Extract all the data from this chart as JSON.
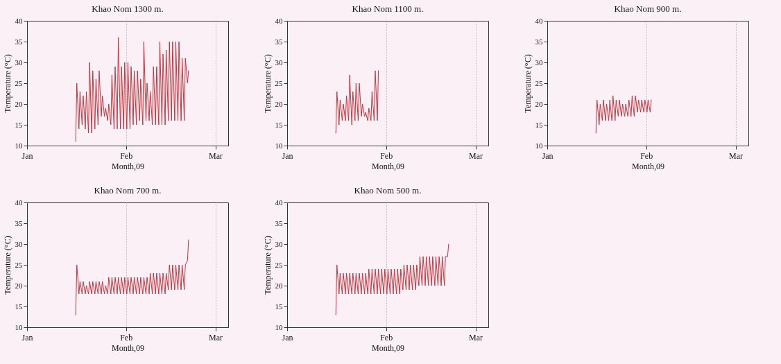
{
  "chart_data": [
    {
      "type": "line",
      "title": "Khao Nom 1300 m.",
      "xlabel": "Month,09",
      "ylabel": "Temperature (°C)",
      "xlim": [
        "--01-01",
        "--03-05"
      ],
      "xticks": [
        {
          "value": "--01-01",
          "label": "Jan"
        },
        {
          "value": "--02-01",
          "label": "Feb"
        },
        {
          "value": "--03-01",
          "label": "Mar"
        }
      ],
      "ylim": [
        10,
        40
      ],
      "yticks": [
        10,
        15,
        20,
        25,
        30,
        35,
        40
      ],
      "grid": "x",
      "x": [
        "--01-16T06:00",
        "--01-16T14:00",
        "--01-17T06:00",
        "--01-17T14:00",
        "--01-18T06:00",
        "--01-18T14:00",
        "--01-19T06:00",
        "--01-19T14:00",
        "--01-20T06:00",
        "--01-20T14:00",
        "--01-21T06:00",
        "--01-21T14:00",
        "--01-22T06:00",
        "--01-22T14:00",
        "--01-23T06:00",
        "--01-23T14:00",
        "--01-24T06:00",
        "--01-24T14:00",
        "--01-25T06:00",
        "--01-25T14:00",
        "--01-26T06:00",
        "--01-26T14:00",
        "--01-27T06:00",
        "--01-27T14:00",
        "--01-28T06:00",
        "--01-28T14:00",
        "--01-29T06:00",
        "--01-29T14:00",
        "--01-30T06:00",
        "--01-30T14:00",
        "--01-31T06:00",
        "--01-31T14:00",
        "--02-01T06:00",
        "--02-01T14:00",
        "--02-02T06:00",
        "--02-02T14:00",
        "--02-03T06:00",
        "--02-03T14:00",
        "--02-04T06:00",
        "--02-04T14:00",
        "--02-05T06:00",
        "--02-05T14:00",
        "--02-06T06:00",
        "--02-06T14:00",
        "--02-07T06:00",
        "--02-07T14:00",
        "--02-08T06:00",
        "--02-08T14:00",
        "--02-09T06:00",
        "--02-09T14:00",
        "--02-10T06:00",
        "--02-10T14:00",
        "--02-11T06:00",
        "--02-11T14:00",
        "--02-12T06:00",
        "--02-12T14:00",
        "--02-13T06:00",
        "--02-13T14:00",
        "--02-14T06:00",
        "--02-14T14:00",
        "--02-15T06:00",
        "--02-15T14:00",
        "--02-16T06:00",
        "--02-16T14:00",
        "--02-17T06:00",
        "--02-17T14:00",
        "--02-18T06:00",
        "--02-18T14:00",
        "--02-19T06:00",
        "--02-19T14:00",
        "--02-20T06:00",
        "--02-20T14:00"
      ],
      "series": [
        {
          "color": "#c8323c",
          "values": [
            11,
            25,
            14,
            23,
            15,
            22,
            14,
            23,
            13,
            30,
            13,
            28,
            14,
            26,
            15,
            28,
            17,
            22,
            17,
            19,
            16,
            20,
            15,
            27,
            14,
            29,
            14,
            36,
            14,
            29,
            14,
            30,
            14,
            30,
            14,
            29,
            15,
            28,
            15,
            28,
            16,
            26,
            15,
            35,
            16,
            25,
            16,
            23,
            15,
            29,
            15,
            29,
            15,
            35,
            15,
            32,
            15,
            33,
            16,
            35,
            16,
            35,
            16,
            35,
            16,
            35,
            16,
            31,
            16,
            31,
            25,
            28
          ]
        }
      ]
    },
    {
      "type": "line",
      "title": "Khao Nom 1100 m.",
      "xlabel": "Month,09",
      "ylabel": "Temperature (°C)",
      "xlim": [
        "--01-01",
        "--03-05"
      ],
      "xticks": [
        {
          "value": "--01-01",
          "label": "Jan"
        },
        {
          "value": "--02-01",
          "label": "Feb"
        },
        {
          "value": "--03-01",
          "label": "Mar"
        }
      ],
      "ylim": [
        10,
        40
      ],
      "yticks": [
        10,
        15,
        20,
        25,
        30,
        35,
        40
      ],
      "grid": "x",
      "x": [
        "--01-16T06:00",
        "--01-16T14:00",
        "--01-17T06:00",
        "--01-17T14:00",
        "--01-18T06:00",
        "--01-18T14:00",
        "--01-19T06:00",
        "--01-19T14:00",
        "--01-20T06:00",
        "--01-20T14:00",
        "--01-21T06:00",
        "--01-21T14:00",
        "--01-22T06:00",
        "--01-22T14:00",
        "--01-23T06:00",
        "--01-23T14:00",
        "--01-24T06:00",
        "--01-24T14:00",
        "--01-25T06:00",
        "--01-25T14:00",
        "--01-26T06:00",
        "--01-26T14:00",
        "--01-27T06:00",
        "--01-27T14:00",
        "--01-28T06:00",
        "--01-28T14:00",
        "--01-29T06:00",
        "--01-29T14:00"
      ],
      "series": [
        {
          "color": "#c8323c",
          "values": [
            13,
            23,
            15,
            21,
            16,
            20,
            16,
            22,
            16,
            27,
            15,
            23,
            16,
            25,
            16,
            25,
            17,
            20,
            17,
            18,
            16,
            19,
            16,
            23,
            16,
            28,
            16,
            28
          ]
        }
      ]
    },
    {
      "type": "line",
      "title": "Khao Nom 900 m.",
      "xlabel": "Month,09",
      "ylabel": "Temperature (°C)",
      "xlim": [
        "--01-01",
        "--03-05"
      ],
      "xticks": [
        {
          "value": "--01-01",
          "label": "Jan"
        },
        {
          "value": "--02-01",
          "label": "Feb"
        },
        {
          "value": "--03-01",
          "label": "Mar"
        }
      ],
      "ylim": [
        10,
        40
      ],
      "yticks": [
        10,
        15,
        20,
        25,
        30,
        35,
        40
      ],
      "grid": "x",
      "x": [
        "--01-16T06:00",
        "--01-16T14:00",
        "--01-17T06:00",
        "--01-17T14:00",
        "--01-18T06:00",
        "--01-18T14:00",
        "--01-19T06:00",
        "--01-19T14:00",
        "--01-20T06:00",
        "--01-20T14:00",
        "--01-21T06:00",
        "--01-21T14:00",
        "--01-22T06:00",
        "--01-22T14:00",
        "--01-23T06:00",
        "--01-23T14:00",
        "--01-24T06:00",
        "--01-24T14:00",
        "--01-25T06:00",
        "--01-25T14:00",
        "--01-26T06:00",
        "--01-26T14:00",
        "--01-27T06:00",
        "--01-27T14:00",
        "--01-28T06:00",
        "--01-28T14:00",
        "--01-29T06:00",
        "--01-29T14:00",
        "--01-30T06:00",
        "--01-30T14:00",
        "--01-31T06:00",
        "--01-31T14:00",
        "--02-01T06:00",
        "--02-01T14:00",
        "--02-02T06:00",
        "--02-02T14:00"
      ],
      "series": [
        {
          "color": "#c8323c",
          "values": [
            13,
            21,
            15,
            20,
            16,
            21,
            16,
            20,
            16,
            21,
            16,
            22,
            16,
            21,
            17,
            21,
            17,
            20,
            17,
            20,
            17,
            21,
            17,
            22,
            17,
            22,
            18,
            21,
            18,
            21,
            18,
            21,
            18,
            21,
            18,
            21
          ]
        }
      ]
    },
    {
      "type": "line",
      "title": "Khao Nom 700 m.",
      "xlabel": "Month,09",
      "ylabel": "Temperature (°C)",
      "xlim": [
        "--01-01",
        "--03-05"
      ],
      "xticks": [
        {
          "value": "--01-01",
          "label": "Jan"
        },
        {
          "value": "--02-01",
          "label": "Feb"
        },
        {
          "value": "--03-01",
          "label": "Mar"
        }
      ],
      "ylim": [
        10,
        40
      ],
      "yticks": [
        10,
        15,
        20,
        25,
        30,
        35,
        40
      ],
      "grid": "x",
      "x": [
        "--01-16T06:00",
        "--01-16T14:00",
        "--01-17T06:00",
        "--01-17T14:00",
        "--01-18T06:00",
        "--01-18T14:00",
        "--01-19T06:00",
        "--01-19T14:00",
        "--01-20T06:00",
        "--01-20T14:00",
        "--01-21T06:00",
        "--01-21T14:00",
        "--01-22T06:00",
        "--01-22T14:00",
        "--01-23T06:00",
        "--01-23T14:00",
        "--01-24T06:00",
        "--01-24T14:00",
        "--01-25T06:00",
        "--01-25T14:00",
        "--01-26T06:00",
        "--01-26T14:00",
        "--01-27T06:00",
        "--01-27T14:00",
        "--01-28T06:00",
        "--01-28T14:00",
        "--01-29T06:00",
        "--01-29T14:00",
        "--01-30T06:00",
        "--01-30T14:00",
        "--01-31T06:00",
        "--01-31T14:00",
        "--02-01T06:00",
        "--02-01T14:00",
        "--02-02T06:00",
        "--02-02T14:00",
        "--02-03T06:00",
        "--02-03T14:00",
        "--02-04T06:00",
        "--02-04T14:00",
        "--02-05T06:00",
        "--02-05T14:00",
        "--02-06T06:00",
        "--02-06T14:00",
        "--02-07T06:00",
        "--02-07T14:00",
        "--02-08T06:00",
        "--02-08T14:00",
        "--02-09T06:00",
        "--02-09T14:00",
        "--02-10T06:00",
        "--02-10T14:00",
        "--02-11T06:00",
        "--02-11T14:00",
        "--02-12T06:00",
        "--02-12T14:00",
        "--02-13T06:00",
        "--02-13T14:00",
        "--02-14T06:00",
        "--02-14T14:00",
        "--02-15T06:00",
        "--02-15T14:00",
        "--02-16T06:00",
        "--02-16T14:00",
        "--02-17T06:00",
        "--02-17T14:00",
        "--02-18T06:00",
        "--02-18T14:00",
        "--02-19T06:00",
        "--02-19T14:00",
        "--02-20T06:00",
        "--02-20T14:00"
      ],
      "series": [
        {
          "color": "#c8323c",
          "values": [
            13,
            25,
            18,
            21,
            18,
            21,
            18,
            20,
            18,
            21,
            18,
            21,
            18,
            21,
            18,
            21,
            18,
            21,
            18,
            20,
            18,
            22,
            18,
            22,
            18,
            22,
            18,
            22,
            18,
            22,
            18,
            22,
            18,
            22,
            18,
            22,
            18,
            22,
            18,
            22,
            18,
            22,
            18,
            22,
            18,
            22,
            18,
            23,
            18,
            23,
            18,
            23,
            18,
            23,
            18,
            23,
            18,
            23,
            19,
            25,
            19,
            25,
            19,
            25,
            19,
            25,
            19,
            25,
            19,
            25,
            26,
            31
          ]
        }
      ]
    },
    {
      "type": "line",
      "title": "Khao Nom 500 m.",
      "xlabel": "Month,09",
      "ylabel": "Temperature (°C)",
      "xlim": [
        "--01-01",
        "--03-05"
      ],
      "xticks": [
        {
          "value": "--01-01",
          "label": "Jan"
        },
        {
          "value": "--02-01",
          "label": "Feb"
        },
        {
          "value": "--03-01",
          "label": "Mar"
        }
      ],
      "ylim": [
        10,
        40
      ],
      "yticks": [
        10,
        15,
        20,
        25,
        30,
        35,
        40
      ],
      "grid": "x",
      "x": [
        "--01-16T06:00",
        "--01-16T14:00",
        "--01-17T06:00",
        "--01-17T14:00",
        "--01-18T06:00",
        "--01-18T14:00",
        "--01-19T06:00",
        "--01-19T14:00",
        "--01-20T06:00",
        "--01-20T14:00",
        "--01-21T06:00",
        "--01-21T14:00",
        "--01-22T06:00",
        "--01-22T14:00",
        "--01-23T06:00",
        "--01-23T14:00",
        "--01-24T06:00",
        "--01-24T14:00",
        "--01-25T06:00",
        "--01-25T14:00",
        "--01-26T06:00",
        "--01-26T14:00",
        "--01-27T06:00",
        "--01-27T14:00",
        "--01-28T06:00",
        "--01-28T14:00",
        "--01-29T06:00",
        "--01-29T14:00",
        "--01-30T06:00",
        "--01-30T14:00",
        "--01-31T06:00",
        "--01-31T14:00",
        "--02-01T06:00",
        "--02-01T14:00",
        "--02-02T06:00",
        "--02-02T14:00",
        "--02-03T06:00",
        "--02-03T14:00",
        "--02-04T06:00",
        "--02-04T14:00",
        "--02-05T06:00",
        "--02-05T14:00",
        "--02-06T06:00",
        "--02-06T14:00",
        "--02-07T06:00",
        "--02-07T14:00",
        "--02-08T06:00",
        "--02-08T14:00",
        "--02-09T06:00",
        "--02-09T14:00",
        "--02-10T06:00",
        "--02-10T14:00",
        "--02-11T06:00",
        "--02-11T14:00",
        "--02-12T06:00",
        "--02-12T14:00",
        "--02-13T06:00",
        "--02-13T14:00",
        "--02-14T06:00",
        "--02-14T14:00",
        "--02-15T06:00",
        "--02-15T14:00",
        "--02-16T06:00",
        "--02-16T14:00",
        "--02-17T06:00",
        "--02-17T14:00",
        "--02-18T06:00",
        "--02-18T14:00",
        "--02-19T06:00",
        "--02-19T14:00",
        "--02-20T06:00",
        "--02-20T14:00"
      ],
      "series": [
        {
          "color": "#c8323c",
          "values": [
            13,
            25,
            18,
            23,
            18,
            23,
            18,
            23,
            18,
            23,
            18,
            23,
            18,
            23,
            18,
            23,
            18,
            23,
            18,
            23,
            18,
            24,
            18,
            24,
            18,
            24,
            18,
            24,
            18,
            24,
            18,
            24,
            18,
            24,
            18,
            24,
            18,
            24,
            18,
            24,
            18,
            24,
            19,
            25,
            19,
            25,
            19,
            25,
            19,
            25,
            19,
            25,
            20,
            27,
            20,
            27,
            20,
            27,
            20,
            27,
            20,
            27,
            20,
            27,
            20,
            27,
            20,
            27,
            20,
            27,
            27,
            30
          ]
        }
      ]
    }
  ]
}
